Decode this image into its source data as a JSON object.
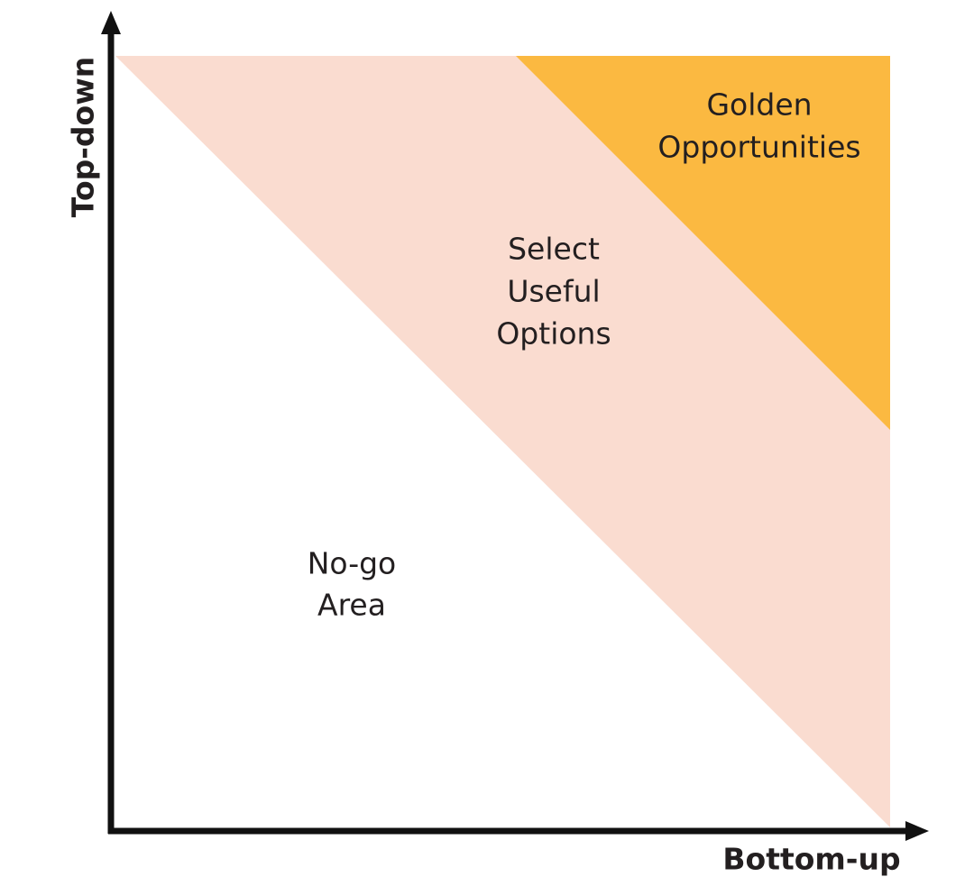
{
  "axes": {
    "y_label": "Top-down",
    "x_label": "Bottom-up"
  },
  "regions": [
    {
      "lines": [
        "Golden",
        "Opportunities"
      ]
    },
    {
      "lines": [
        "Select",
        "Useful",
        "Options"
      ]
    },
    {
      "lines": [
        "No-go",
        "Area"
      ]
    }
  ]
}
